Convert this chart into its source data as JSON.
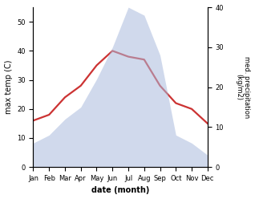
{
  "months": [
    "Jan",
    "Feb",
    "Mar",
    "Apr",
    "May",
    "Jun",
    "Jul",
    "Aug",
    "Sep",
    "Oct",
    "Nov",
    "Dec"
  ],
  "temperature": [
    16,
    18,
    24,
    28,
    35,
    40,
    38,
    37,
    28,
    22,
    20,
    15
  ],
  "precipitation": [
    6,
    8,
    12,
    15,
    22,
    30,
    40,
    38,
    28,
    8,
    6,
    3
  ],
  "temp_color": "#cc3333",
  "precip_color": "#aabbdd",
  "ylabel_left": "max temp (C)",
  "ylabel_right": "med. precipitation\n(kg/m2)",
  "xlabel": "date (month)",
  "ylim_left": [
    0,
    55
  ],
  "ylim_right": [
    0,
    40
  ],
  "yticks_left": [
    0,
    10,
    20,
    30,
    40,
    50
  ],
  "yticks_right": [
    0,
    10,
    20,
    30,
    40
  ],
  "background_color": "#ffffff",
  "temp_linewidth": 1.6,
  "precip_alpha": 0.55
}
